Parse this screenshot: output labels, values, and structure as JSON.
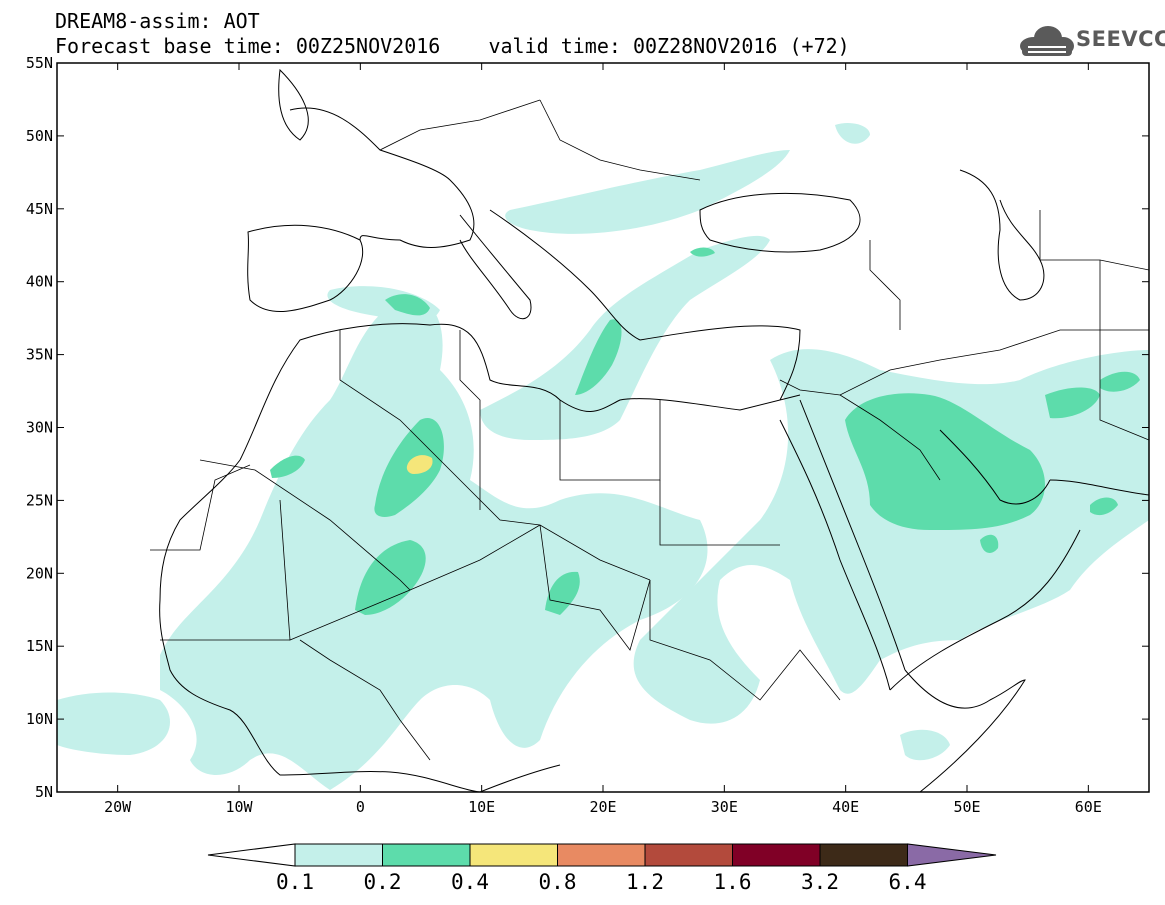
{
  "title": {
    "line1": "DREAM8-assim: AOT",
    "line2": "Forecast base time: 00Z25NOV2016    valid time: 00Z28NOV2016 (+72)"
  },
  "logo": {
    "text": "SEEVCCC",
    "icon": "cloud-icon"
  },
  "map": {
    "lon_range": [
      -25,
      65
    ],
    "lat_range": [
      5,
      55
    ],
    "lat_ticks": [
      "55N",
      "50N",
      "45N",
      "40N",
      "35N",
      "30N",
      "25N",
      "20N",
      "15N",
      "10N",
      "5N"
    ],
    "lon_ticks": [
      "20W",
      "10W",
      "0",
      "10E",
      "20E",
      "30E",
      "40E",
      "50E",
      "60E"
    ]
  },
  "colorbar": {
    "labels": [
      "0.1",
      "0.2",
      "0.4",
      "0.8",
      "1.2",
      "1.6",
      "3.2",
      "6.4"
    ],
    "colors": [
      "#ffffff",
      "#c4f0ea",
      "#5ddcab",
      "#f5e67a",
      "#e88a62",
      "#b34a3c",
      "#800026",
      "#3d2a18",
      "#8a6aa6"
    ]
  },
  "colors": {
    "level1": "#c4f0ea",
    "level2": "#5ddcab",
    "level3": "#f5e67a",
    "coast": "#000000"
  }
}
